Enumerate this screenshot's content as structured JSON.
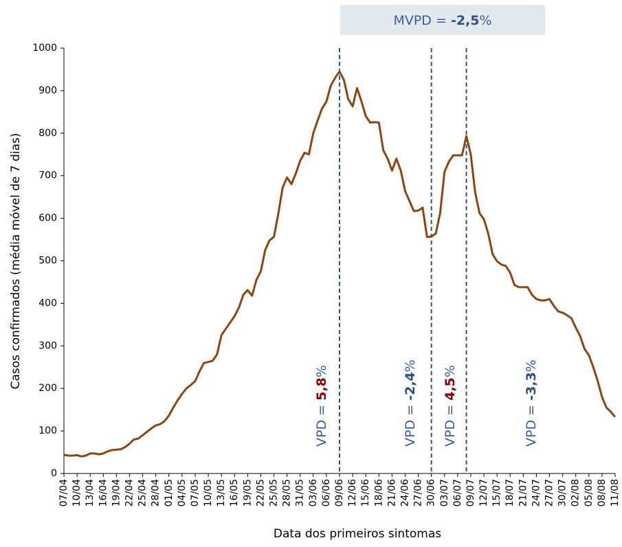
{
  "chart_data": {
    "type": "line",
    "x": [
      "07/04",
      "08/04",
      "09/04",
      "10/04",
      "11/04",
      "12/04",
      "13/04",
      "14/04",
      "15/04",
      "16/04",
      "17/04",
      "18/04",
      "19/04",
      "20/04",
      "21/04",
      "22/04",
      "23/04",
      "24/04",
      "25/04",
      "26/04",
      "27/04",
      "28/04",
      "29/04",
      "30/04",
      "01/05",
      "02/05",
      "03/05",
      "04/05",
      "05/05",
      "06/05",
      "07/05",
      "08/05",
      "09/05",
      "10/05",
      "11/05",
      "12/05",
      "13/05",
      "14/05",
      "15/05",
      "16/05",
      "17/05",
      "18/05",
      "19/05",
      "20/05",
      "21/05",
      "22/05",
      "23/05",
      "24/05",
      "25/05",
      "26/05",
      "27/05",
      "28/05",
      "29/05",
      "30/05",
      "31/05",
      "01/06",
      "02/06",
      "03/06",
      "04/06",
      "05/06",
      "06/06",
      "07/06",
      "08/06",
      "09/06",
      "10/06",
      "11/06",
      "12/06",
      "13/06",
      "14/06",
      "15/06",
      "16/06",
      "17/06",
      "18/06",
      "19/06",
      "20/06",
      "21/06",
      "22/06",
      "23/06",
      "24/06",
      "25/06",
      "26/06",
      "27/06",
      "28/06",
      "29/06",
      "30/06",
      "01/07",
      "02/07",
      "03/07",
      "04/07",
      "05/07",
      "06/07",
      "07/07",
      "08/07",
      "09/07",
      "10/07",
      "11/07",
      "12/07",
      "13/07",
      "14/07",
      "15/07",
      "16/07",
      "17/07",
      "18/07",
      "19/07",
      "20/07",
      "21/07",
      "22/07",
      "23/07",
      "24/07",
      "25/07",
      "26/07",
      "27/07",
      "28/07",
      "29/07",
      "30/07",
      "31/07",
      "01/08",
      "02/08",
      "03/08",
      "04/08",
      "05/08",
      "06/08",
      "07/08",
      "08/08",
      "09/08",
      "10/08",
      "11/08"
    ],
    "xticks": [
      "07/04",
      "10/04",
      "13/04",
      "16/04",
      "19/04",
      "22/04",
      "25/04",
      "28/04",
      "01/05",
      "04/05",
      "07/05",
      "10/05",
      "13/05",
      "16/05",
      "19/05",
      "22/05",
      "25/05",
      "28/05",
      "31/05",
      "03/06",
      "06/06",
      "09/06",
      "12/06",
      "15/06",
      "18/06",
      "21/06",
      "24/06",
      "27/06",
      "30/06",
      "03/07",
      "06/07",
      "09/07",
      "12/07",
      "15/07",
      "18/07",
      "21/07",
      "24/07",
      "27/07",
      "30/07",
      "02/08",
      "05/08",
      "08/08",
      "11/08"
    ],
    "series": [
      {
        "color": "#8b4513",
        "values": [
          44,
          42,
          42,
          43,
          40,
          42,
          47,
          47,
          45,
          47,
          52,
          55,
          56,
          57,
          62,
          70,
          80,
          82,
          90,
          98,
          106,
          113,
          116,
          123,
          136,
          155,
          172,
          187,
          200,
          208,
          217,
          240,
          260,
          262,
          265,
          280,
          325,
          340,
          355,
          370,
          390,
          420,
          431,
          418,
          455,
          475,
          525,
          548,
          556,
          610,
          672,
          696,
          680,
          705,
          735,
          754,
          750,
          800,
          830,
          858,
          874,
          912,
          930,
          945,
          925,
          880,
          863,
          906,
          875,
          840,
          825,
          826,
          825,
          760,
          740,
          712,
          740,
          712,
          664,
          640,
          617,
          618,
          625,
          556,
          557,
          564,
          612,
          709,
          733,
          748,
          748,
          748,
          793,
          750,
          661,
          612,
          598,
          564,
          515,
          499,
          491,
          488,
          472,
          443,
          438,
          438,
          438,
          420,
          410,
          407,
          407,
          410,
          394,
          381,
          378,
          372,
          365,
          343,
          323,
          293,
          278,
          250,
          218,
          180,
          155,
          145,
          133
        ]
      }
    ],
    "ylim": [
      0,
      1000
    ],
    "yticks": [
      0,
      100,
      200,
      300,
      400,
      500,
      600,
      700,
      800,
      900,
      1000
    ],
    "xlabel": "Data dos primeiros sintomas",
    "ylabel": "Casos confirmados (média móvel de 7 dias)",
    "vlines": [
      "09/06",
      "30/06",
      "08/07"
    ],
    "vline_color": "#2f4f8f",
    "annotations": [
      {
        "prefix": "MVPD = ",
        "bold": "-2,5",
        "suffix": "%",
        "bold_color": "#2f4f8f"
      },
      {
        "prefix": "VPD = ",
        "bold": "5,8",
        "suffix": "%",
        "bold_color": "#8b0000"
      },
      {
        "prefix": "VPD = ",
        "bold": "-2,4",
        "suffix": "%",
        "bold_color": "#2f4f8f"
      },
      {
        "prefix": "VPD = ",
        "bold": "4,5",
        "suffix": "%",
        "bold_color": "#8b0000"
      },
      {
        "prefix": "VPD = ",
        "bold": "-3,3",
        "suffix": "%",
        "bold_color": "#2f4f8f"
      }
    ]
  }
}
